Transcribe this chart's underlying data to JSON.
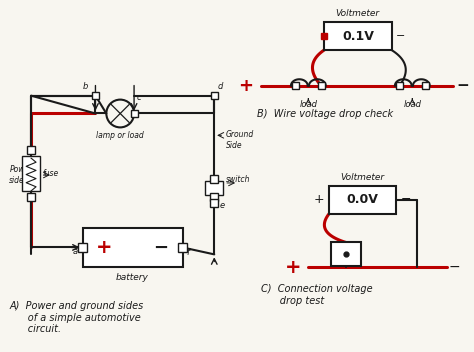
{
  "background_color": "#f8f6f0",
  "fig_width": 4.74,
  "fig_height": 3.52,
  "dpi": 100,
  "section_A_label": "A)  Power and ground sides\n      of a simple automotive\n      circuit.",
  "section_B_label": "B)  Wire voltage drop check",
  "section_C_label": "C)  Connection voltage\n      drop test",
  "wire_color": "#1a1a1a",
  "red_color": "#bb0000",
  "text_color": "#1a1a1a",
  "voltmeter_B_reading": "0.1V",
  "voltmeter_C_reading": "0.0V",
  "label_fontsize": 7.0,
  "small_fontsize": 5.5
}
